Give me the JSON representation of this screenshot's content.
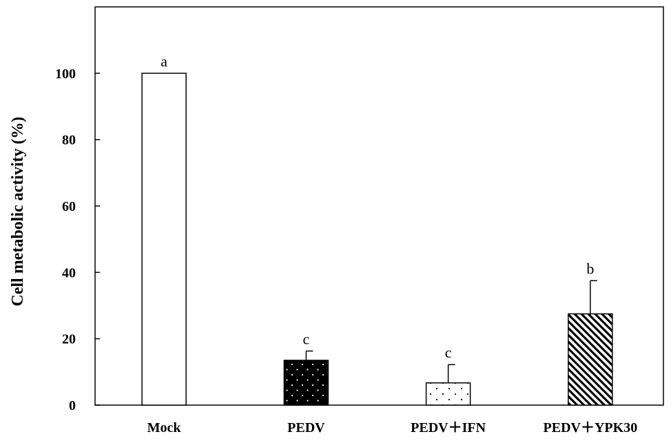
{
  "chart_data": {
    "type": "bar",
    "ylabel": "Cell metabolic activity (%)",
    "xlabel": "",
    "ylim": [
      0,
      120
    ],
    "yticks": [
      0,
      20,
      40,
      60,
      80,
      100
    ],
    "categories": [
      "Mock",
      "PEDV",
      "PEDV＋IFN",
      "PEDV＋YPK30"
    ],
    "values": [
      100,
      13.5,
      6.7,
      27.5
    ],
    "error_upper": [
      0,
      2.8,
      5.5,
      10.0
    ],
    "significance_letters": [
      "a",
      "c",
      "c",
      "b"
    ],
    "fill_patterns": [
      "white",
      "black-with-white-dots",
      "white-with-black-dots",
      "diagonal-hatch"
    ],
    "grid": false,
    "legend": "none"
  }
}
